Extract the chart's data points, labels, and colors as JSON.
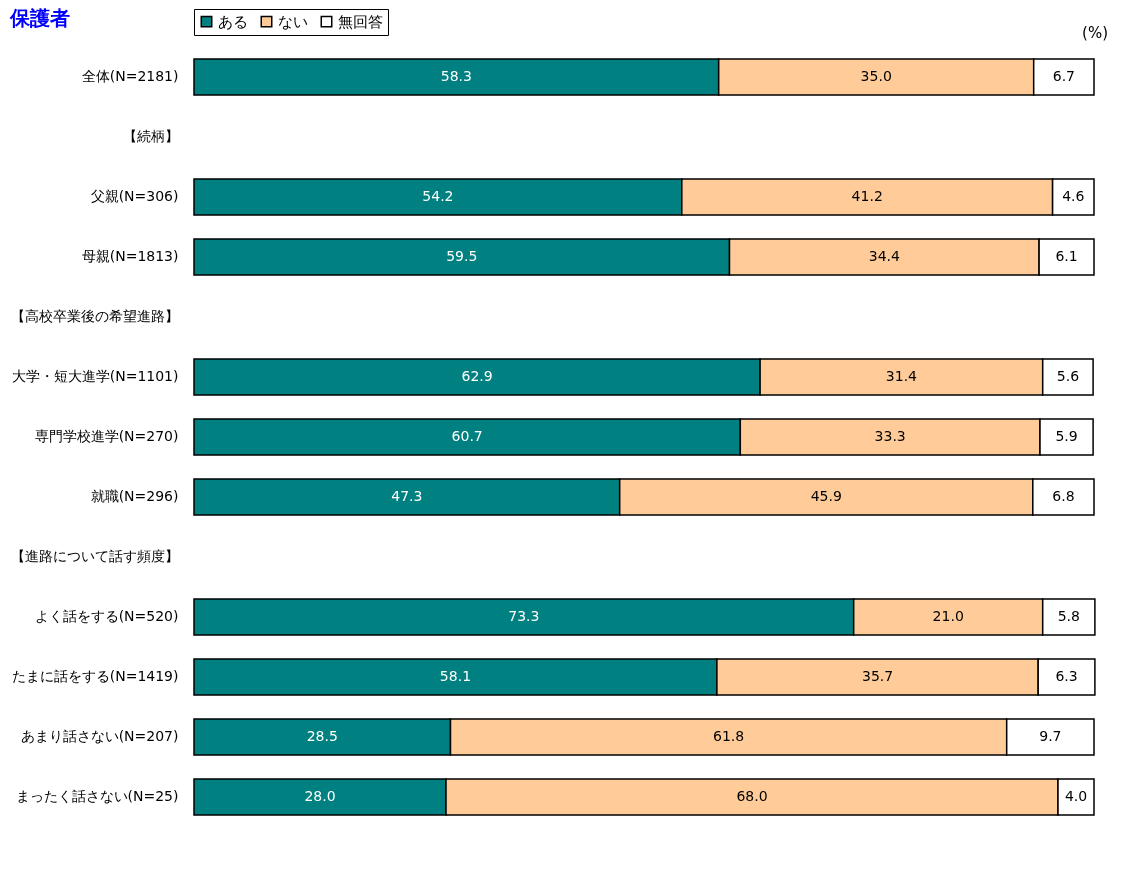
{
  "chart_data": {
    "type": "bar",
    "orientation": "horizontal",
    "stacked": true,
    "title": "保護者",
    "categories": [
      "全体(N=2181)",
      "【続柄】",
      "父親(N=306)",
      "母親(N=1813)",
      "【高校卒業後の希望進路】",
      "大学・短大進学(N=1101)",
      "専門学校進学(N=270)",
      "就職(N=296)",
      "【進路について話す頻度】",
      "よく話をする(N=520)",
      "たまに話をする(N=1419)",
      "あまり話さない(N=207)",
      "まったく話さない(N=25)"
    ],
    "series": [
      {
        "name": "ある",
        "color": "#008080",
        "values": [
          58.3,
          null,
          54.2,
          59.5,
          null,
          62.9,
          60.7,
          47.3,
          null,
          73.3,
          58.1,
          28.5,
          28.0
        ],
        "value_labels": [
          "58.3",
          null,
          "54.2",
          "59.5",
          null,
          "62.9",
          "60.7",
          "47.3",
          null,
          "73.3",
          "58.1",
          "28.5",
          "28.0"
        ]
      },
      {
        "name": "ない",
        "color": "#ffcc99",
        "values": [
          35.0,
          null,
          41.2,
          34.4,
          null,
          31.4,
          33.3,
          45.9,
          null,
          21.0,
          35.7,
          61.8,
          68.0
        ],
        "value_labels": [
          "35.0",
          null,
          "41.2",
          "34.4",
          null,
          "31.4",
          "33.3",
          "45.9",
          null,
          "21.0",
          "35.7",
          "61.8",
          "68.0"
        ]
      },
      {
        "name": "無回答",
        "color": "#ffffff",
        "values": [
          6.7,
          null,
          4.6,
          6.1,
          null,
          5.6,
          5.9,
          6.8,
          null,
          5.8,
          6.3,
          9.7,
          4.0
        ],
        "value_labels": [
          "6.7",
          null,
          "4.6",
          "6.1",
          null,
          "5.6",
          "5.9",
          "6.8",
          null,
          "5.8",
          "6.3",
          "9.7",
          "4.0"
        ]
      }
    ],
    "xlim": [
      0,
      100
    ],
    "tick_labels": "y",
    "legend": "top",
    "annotations": [
      "(%)"
    ]
  }
}
